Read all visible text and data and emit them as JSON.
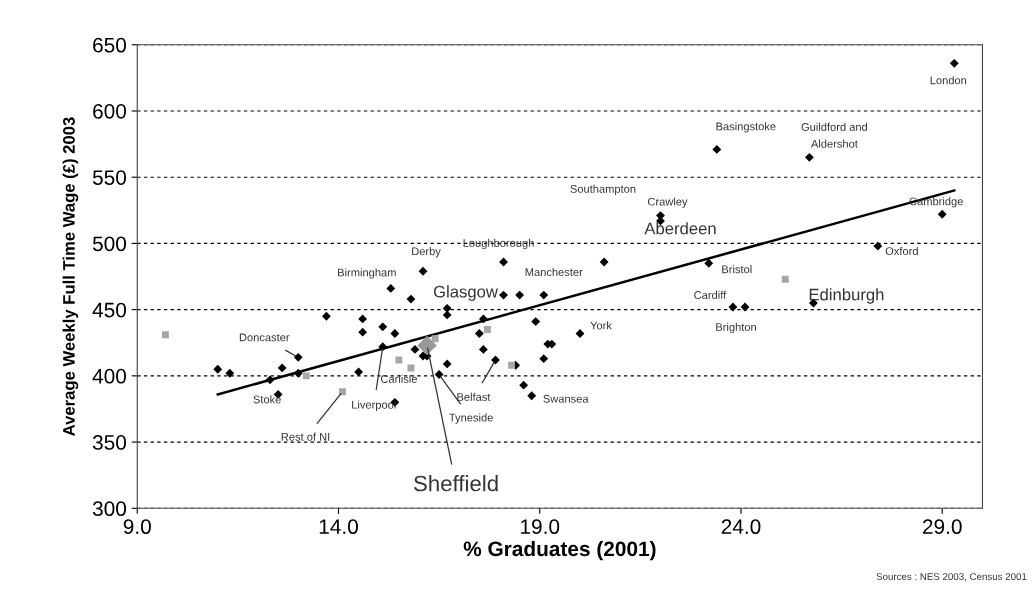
{
  "chart_data": {
    "type": "scatter",
    "xlabel": "% Graduates (2001)",
    "ylabel": "Average Weekly Full Time Wage (£) 2003",
    "xlim": [
      9,
      30
    ],
    "ylim": [
      300,
      650
    ],
    "xticks": [
      {
        "value": 9,
        "label": "9.0"
      },
      {
        "value": 14,
        "label": "14.0"
      },
      {
        "value": 19,
        "label": "19.0"
      },
      {
        "value": 24,
        "label": "24.0"
      },
      {
        "value": 29,
        "label": "29.0"
      }
    ],
    "yticks": [
      300,
      350,
      400,
      450,
      500,
      550,
      600,
      650
    ],
    "grid": "y",
    "series": [
      {
        "marker": "diamond",
        "color": "#000000",
        "x": [
          13.7,
          14.6,
          14.6,
          15.1,
          15.4,
          15.3,
          15.8,
          16.1,
          13.0,
          12.6,
          13.0,
          11.0,
          11.3,
          12.3,
          12.5,
          14.5,
          15.1,
          15.4,
          15.9,
          16.1,
          16.2,
          16.5,
          16.7,
          16.7,
          16.7,
          18.1,
          20.6,
          18.1,
          18.5,
          19.1,
          17.6,
          18.9,
          20.0,
          17.5,
          19.2,
          19.3,
          17.6,
          17.9,
          18.4,
          19.1,
          18.6,
          18.8,
          22.0,
          22.0,
          29.3,
          23.4,
          25.7,
          29.0,
          27.4,
          23.2,
          23.8,
          24.1,
          25.8
        ],
        "values": [
          445,
          443,
          433,
          437,
          432,
          466,
          458,
          479,
          414,
          406,
          402,
          405,
          402,
          397,
          386,
          403,
          422,
          380,
          420,
          415,
          415,
          401,
          409,
          451,
          446,
          486,
          486,
          461,
          461,
          461,
          443,
          441,
          432,
          432,
          424,
          424,
          420,
          412,
          408,
          413,
          393,
          385,
          521,
          517,
          636,
          571,
          565,
          522,
          498,
          485,
          452,
          452,
          455
        ]
      },
      {
        "marker": "square",
        "color": "#a6a6a6",
        "x": [
          9.7,
          13.2,
          14.1,
          15.5,
          15.8,
          16.4,
          17.7,
          18.3,
          25.1
        ],
        "values": [
          431,
          400,
          388,
          412,
          406,
          428,
          435,
          408,
          473
        ]
      },
      {
        "marker": "diamond",
        "color": "#999999",
        "x": [
          16.2
        ],
        "values": [
          423
        ]
      },
      {
        "type": "line",
        "line_style": "solid",
        "marker": "none",
        "color": "#000000",
        "x": [
          11.0,
          29.3
        ],
        "values": [
          386,
          540
        ]
      }
    ],
    "annotations": [
      {
        "text": "London",
        "x": 29.3,
        "y": 636
      },
      {
        "text": "Basingstoke",
        "x": 23.4,
        "y": 571
      },
      {
        "text": "Guildford and\nAldershot",
        "x": 25.7,
        "y": 565
      },
      "Southampton",
      {
        "text": "Crawley",
        "x": 22.0,
        "y": 521
      },
      {
        "text": "Aberdeen",
        "x": 22.0,
        "y": 517
      },
      {
        "text": "Cambridge",
        "x": 29.0,
        "y": 522
      },
      {
        "text": "Oxford",
        "x": 27.4,
        "y": 498
      },
      {
        "text": "Bristol",
        "x": 23.2,
        "y": 485
      },
      {
        "text": "Cardiff",
        "x": 23.8,
        "y": 452
      },
      {
        "text": "Edinburgh",
        "x": 25.8,
        "y": 455
      },
      {
        "text": "Brighton",
        "x": 24.1,
        "y": 452
      },
      {
        "text": "Manchester",
        "x": 19.1,
        "y": 461
      },
      {
        "text": "Loughborough",
        "x": 18.1,
        "y": 486
      },
      {
        "text": "Derby",
        "x": 16.1,
        "y": 479
      },
      {
        "text": "Birmingham",
        "x": 15.3,
        "y": 466
      },
      {
        "text": "Glasgow",
        "x": 18.1,
        "y": 461
      },
      {
        "text": "York",
        "x": 20.0,
        "y": 432
      },
      {
        "text": "Doncaster",
        "x": 13.0,
        "y": 414
      },
      {
        "text": "Carlisle",
        "x": 15.8,
        "y": 406
      },
      {
        "text": "Belfast",
        "x": 17.9,
        "y": 412
      },
      {
        "text": "Swansea",
        "x": 18.8,
        "y": 385
      },
      {
        "text": "Stoke",
        "x": 12.5,
        "y": 386
      },
      {
        "text": "Liverpool",
        "x": 15.1,
        "y": 422
      },
      {
        "text": "Tyneside",
        "x": 16.5,
        "y": 401
      },
      {
        "text": "Rest of NI",
        "x": 14.1,
        "y": 388
      },
      {
        "text": "Sheffield",
        "x": 16.2,
        "y": 423
      },
      "Sources : NES 2003, Census 2001"
    ]
  }
}
